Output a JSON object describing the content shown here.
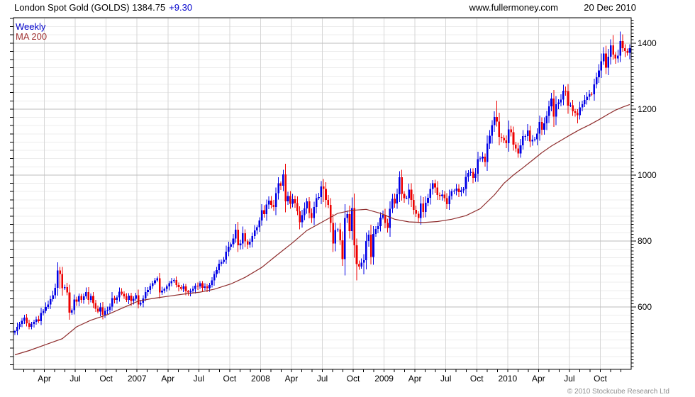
{
  "header": {
    "title_main": "London Spot Gold (GOLDS) 1384.75",
    "change": "+9.30",
    "website": "www.fullermoney.com",
    "date": "20 Dec 2010"
  },
  "legend": {
    "timeframe": "Weekly",
    "ma": "MA 200"
  },
  "footer": {
    "copyright": "© 2010 Stockcube Research Ltd"
  },
  "colors": {
    "up": "#0000e6",
    "down": "#ee0000",
    "ma": "#8e2c2c",
    "change_text": "#0000cc",
    "timeframe_text": "#0000cc",
    "ma_text": "#a03232",
    "grid_major": "#bdbdbd",
    "grid_minor": "#ececec",
    "grid_vertical": "#d6d6d6",
    "axis": "#000000",
    "muted": "#8f8f8f"
  },
  "chart_data": {
    "type": "candlestick",
    "title": "London Spot Gold (GOLDS)",
    "last_price": 1384.75,
    "change": 9.3,
    "timeframe": "Weekly",
    "overlay": "MA 200",
    "x_start": "Jan 2006",
    "x_end": "20 Dec 2010",
    "x_labels": [
      "Apr",
      "Jul",
      "Oct",
      "2007",
      "Apr",
      "Jul",
      "Oct",
      "2008",
      "Apr",
      "Jul",
      "Oct",
      "2009",
      "Apr",
      "Jul",
      "Oct",
      "2010",
      "Apr",
      "Jul",
      "Oct"
    ],
    "y_ticks": [
      600,
      800,
      1000,
      1200,
      1400
    ],
    "y_axis_range": [
      411,
      1477
    ],
    "grid": {
      "y_major_step": 200,
      "y_minor_step": 25,
      "x_gridline_unit": "quarter",
      "x_tick_unit": "month"
    },
    "weekly_closes": [
      527,
      540,
      549,
      558,
      568,
      551,
      540,
      549,
      555,
      562,
      557,
      582,
      588,
      600,
      608,
      624,
      636,
      658,
      711,
      700,
      657,
      660,
      644,
      583,
      590,
      623,
      616,
      633,
      622,
      632,
      645,
      622,
      633,
      612,
      595,
      586,
      599,
      577,
      588,
      592,
      601,
      627,
      622,
      629,
      646,
      640,
      632,
      622,
      635,
      618,
      625,
      636,
      608,
      613,
      626,
      645,
      652,
      664,
      672,
      681,
      687,
      644,
      650,
      655,
      662,
      672,
      679,
      682,
      667,
      660,
      655,
      662,
      648,
      644,
      650,
      655,
      665,
      662,
      672,
      658,
      662,
      657,
      667,
      681,
      700,
      712,
      731,
      737,
      743,
      768,
      783,
      790,
      808,
      834,
      787,
      793,
      824,
      799,
      789,
      798,
      815,
      832,
      842,
      862,
      894,
      882,
      911,
      923,
      910,
      903,
      945,
      975,
      968,
      1002,
      920,
      937,
      913,
      927,
      915,
      890,
      857,
      878,
      899,
      920,
      885,
      870,
      903,
      930,
      933,
      966,
      958,
      925,
      910,
      855,
      792,
      833,
      835,
      802,
      745,
      870,
      882,
      830,
      900,
      787,
      730,
      723,
      734,
      742,
      800,
      819,
      752,
      821,
      837,
      845,
      871,
      879,
      855,
      840,
      898,
      928,
      914,
      942,
      993,
      943,
      930,
      930,
      956,
      925,
      895,
      883,
      870,
      914,
      888,
      916,
      931,
      958,
      975,
      962,
      940,
      936,
      941,
      930,
      912,
      937,
      951,
      953,
      959,
      948,
      954,
      958,
      994,
      1006,
      1010,
      991,
      1004,
      1048,
      1050,
      1056,
      1040,
      1095,
      1119,
      1151,
      1176,
      1162,
      1116,
      1113,
      1105,
      1097,
      1139,
      1130,
      1092,
      1081,
      1065,
      1090,
      1118,
      1118,
      1135,
      1102,
      1107,
      1108,
      1126,
      1161,
      1137,
      1157,
      1179,
      1208,
      1232,
      1177,
      1215,
      1220,
      1229,
      1256,
      1255,
      1211,
      1212,
      1193,
      1189,
      1181,
      1205,
      1215,
      1228,
      1237,
      1246,
      1245,
      1275,
      1296,
      1317,
      1345,
      1368,
      1325,
      1359,
      1393,
      1365,
      1353,
      1362,
      1406,
      1385,
      1376,
      1371,
      1384.75
    ],
    "spikes": {
      "18": [
        726,
        655
      ],
      "19": [
        722,
        655
      ],
      "23": [
        646,
        567
      ],
      "37": [
        600,
        563
      ],
      "93": [
        845,
        806
      ],
      "113": [
        1012,
        962
      ],
      "114": [
        1033,
        905
      ],
      "130": [
        988,
        918
      ],
      "138": [
        804,
        738
      ],
      "139": [
        875,
        738
      ],
      "142": [
        932,
        826
      ],
      "144": [
        790,
        681
      ],
      "147": [
        760,
        699
      ],
      "162": [
        1006,
        938
      ],
      "203": [
        1226,
        1152
      ],
      "226": [
        1249,
        1200
      ],
      "231": [
        1264,
        1226
      ],
      "237": [
        1194,
        1157
      ],
      "248": [
        1388,
        1340
      ],
      "252": [
        1424,
        1350
      ],
      "255": [
        1410,
        1360
      ],
      "259": [
        1396,
        1361
      ]
    },
    "ma200_anchors": [
      [
        0,
        455
      ],
      [
        6,
        468
      ],
      [
        13,
        486
      ],
      [
        20,
        504
      ],
      [
        26,
        540
      ],
      [
        32,
        560
      ],
      [
        39,
        577
      ],
      [
        45,
        596
      ],
      [
        52,
        618
      ],
      [
        58,
        626
      ],
      [
        65,
        633
      ],
      [
        71,
        639
      ],
      [
        78,
        645
      ],
      [
        84,
        654
      ],
      [
        91,
        670
      ],
      [
        97,
        690
      ],
      [
        104,
        720
      ],
      [
        110,
        755
      ],
      [
        117,
        795
      ],
      [
        123,
        832
      ],
      [
        130,
        860
      ],
      [
        136,
        884
      ],
      [
        142,
        893
      ],
      [
        148,
        896
      ],
      [
        154,
        884
      ],
      [
        160,
        866
      ],
      [
        166,
        858
      ],
      [
        172,
        856
      ],
      [
        178,
        859
      ],
      [
        184,
        866
      ],
      [
        190,
        877
      ],
      [
        196,
        898
      ],
      [
        202,
        940
      ],
      [
        206,
        975
      ],
      [
        210,
        1000
      ],
      [
        214,
        1022
      ],
      [
        218,
        1045
      ],
      [
        222,
        1068
      ],
      [
        226,
        1088
      ],
      [
        230,
        1105
      ],
      [
        234,
        1122
      ],
      [
        238,
        1138
      ],
      [
        242,
        1152
      ],
      [
        246,
        1168
      ],
      [
        250,
        1185
      ],
      [
        253,
        1197
      ],
      [
        256,
        1206
      ],
      [
        259,
        1214
      ]
    ]
  }
}
